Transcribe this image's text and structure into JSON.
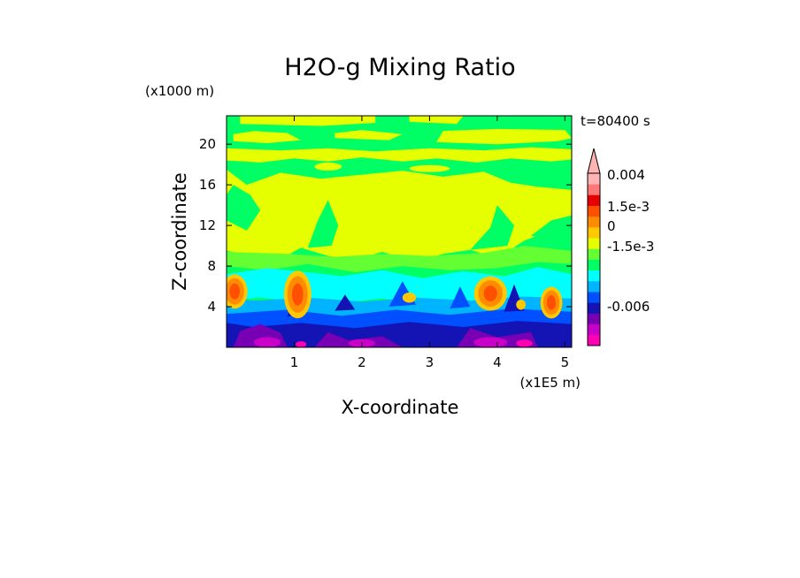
{
  "chart_data": {
    "type": "heatmap",
    "title": "H2O-g Mixing Ratio",
    "xlabel": "X-coordinate",
    "ylabel": "Z-coordinate",
    "x_multiplier": "(x1E5 m)",
    "y_multiplier": "(x1000 m)",
    "time_label": "t=80400 s",
    "xlim": [
      0.0,
      5.1
    ],
    "ylim": [
      0.0,
      22.8
    ],
    "x_ticks": [
      1,
      2,
      3,
      4,
      5
    ],
    "y_ticks": [
      4,
      8,
      12,
      16,
      20
    ],
    "colorbar": {
      "extend": "max",
      "labels": [
        {
          "text": "0.004",
          "level": 0.004
        },
        {
          "text": "1.5e-3",
          "level": 0.0015
        },
        {
          "text": "0",
          "level": 0.0
        },
        {
          "text": "-1.5e-3",
          "level": -0.0015
        },
        {
          "text": "-0.006",
          "level": -0.006
        }
      ],
      "colors": [
        "#ff00b4",
        "#c800c8",
        "#7800b4",
        "#1414b4",
        "#0050ff",
        "#00b4ff",
        "#00ffff",
        "#00ff64",
        "#64ff32",
        "#e6ff00",
        "#ffc800",
        "#ff8c00",
        "#ff5000",
        "#e60000",
        "#ff7878",
        "#ffb4b4"
      ]
    },
    "bands": [
      {
        "z_range": [
          20.0,
          22.8
        ],
        "dominant": "alternating yellow / green stripes"
      },
      {
        "z_range": [
          17.0,
          20.0
        ],
        "dominant": "green with yellow patches"
      },
      {
        "z_range": [
          9.0,
          17.0
        ],
        "dominant": "yellow"
      },
      {
        "z_range": [
          7.0,
          9.0
        ],
        "dominant": "green"
      },
      {
        "z_range": [
          4.0,
          7.0
        ],
        "dominant": "cyan with orange cells near x=0.1, 1.05, 3.9, 4.8"
      },
      {
        "z_range": [
          0.0,
          4.0
        ],
        "dominant": "blue / purple / magenta"
      }
    ]
  }
}
